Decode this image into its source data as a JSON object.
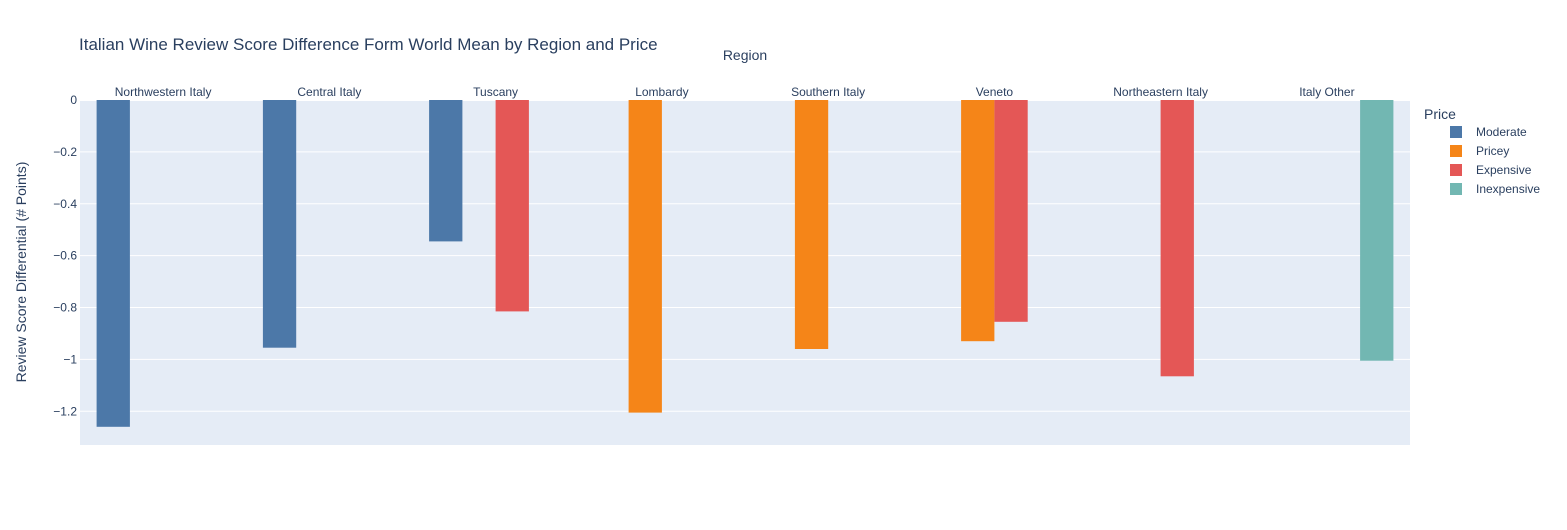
{
  "chart_data": {
    "type": "bar",
    "title": "Italian Wine Review Score Difference Form World Mean by Region and Price",
    "xlabel": "Region",
    "ylabel": "Review Score Differential (# Points)",
    "ylim": [
      -1.33,
      0
    ],
    "yticks": [
      0,
      -0.2,
      -0.4,
      -0.6,
      -0.8,
      -1,
      -1.2
    ],
    "ytick_labels": [
      "0",
      "−0.2",
      "−0.4",
      "−0.6",
      "−0.8",
      "−1",
      "−1.2"
    ],
    "grid": true,
    "legend_title": "Price",
    "legend_position": "right",
    "categories": [
      "Northwestern Italy",
      "Central Italy",
      "Tuscany",
      "Lombardy",
      "Southern Italy",
      "Veneto",
      "Northeastern Italy",
      "Italy Other"
    ],
    "series": [
      {
        "name": "Moderate",
        "color": "#4c78a8",
        "values": [
          -1.26,
          -0.955,
          -0.545,
          null,
          null,
          null,
          null,
          null
        ]
      },
      {
        "name": "Pricey",
        "color": "#f58518",
        "values": [
          null,
          null,
          null,
          -1.205,
          -0.96,
          -0.93,
          null,
          null
        ]
      },
      {
        "name": "Expensive",
        "color": "#e45756",
        "values": [
          null,
          null,
          -0.815,
          null,
          null,
          -0.855,
          -1.065,
          null
        ]
      },
      {
        "name": "Inexpensive",
        "color": "#72b7b2",
        "values": [
          null,
          null,
          null,
          null,
          null,
          null,
          null,
          -1.005
        ]
      }
    ]
  }
}
